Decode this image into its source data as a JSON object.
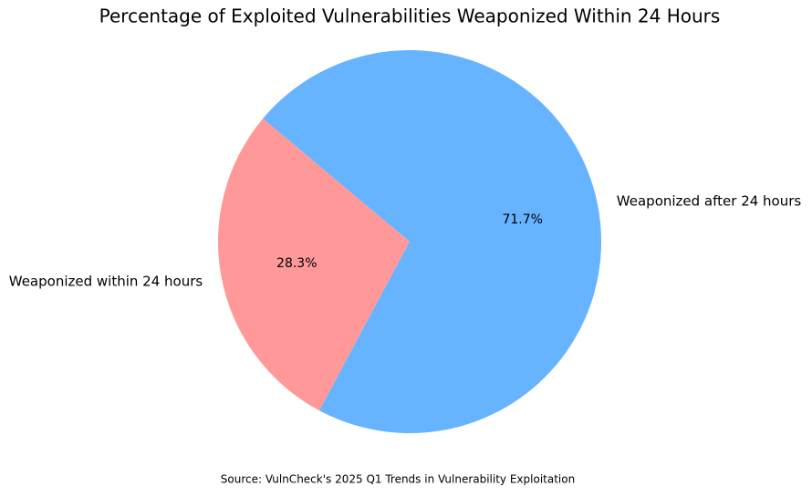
{
  "chart_data": {
    "type": "pie",
    "title": "Percentage of Exploited Vulnerabilities Weaponized Within 24 Hours",
    "categories": [
      "Weaponized within 24 hours",
      "Weaponized after 24 hours"
    ],
    "values": [
      28.3,
      71.7
    ],
    "value_labels": [
      "28.3%",
      "71.7%"
    ],
    "colors": [
      "#ff9999",
      "#66b3ff"
    ],
    "source": "Source: VulnCheck's 2025 Q1 Trends in Vulnerability Exploitation"
  }
}
